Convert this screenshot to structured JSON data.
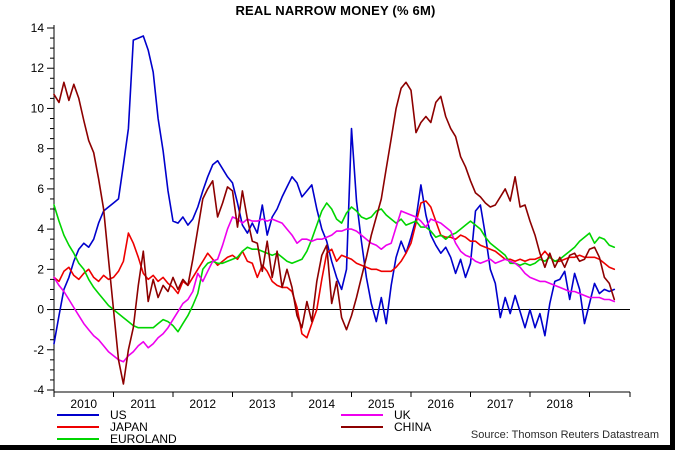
{
  "title": "REAL NARROW MONEY (% 6M)",
  "source": "Source: Thomson Reuters Datastream",
  "chart_data": {
    "type": "line",
    "title": "REAL NARROW MONEY (% 6M)",
    "x_unit": "monthly",
    "x_start": "2010-01",
    "x_end": "2019-06",
    "x_year_labels": [
      "2010",
      "2011",
      "2012",
      "2013",
      "2014",
      "2015",
      "2016",
      "2017",
      "2018"
    ],
    "ylim": [
      -4,
      14
    ],
    "y_major_ticks": [
      14,
      12,
      10,
      8,
      6,
      4,
      2,
      0,
      -2,
      -4
    ],
    "y_minor_step": 0.5,
    "zero_line": true,
    "grid": false,
    "legend_position": "bottom",
    "legend_columns": [
      [
        "US",
        "JAPAN",
        "EUROLAND"
      ],
      [
        "UK",
        "CHINA"
      ]
    ],
    "series": [
      {
        "name": "US",
        "color": "#0000cc",
        "values": [
          -1.7,
          -0.3,
          1.0,
          1.6,
          2.4,
          3.0,
          3.3,
          3.1,
          3.5,
          4.3,
          4.9,
          5.1,
          5.3,
          5.5,
          7.2,
          9.0,
          13.4,
          13.5,
          13.6,
          12.9,
          11.8,
          9.5,
          7.9,
          5.9,
          4.4,
          4.3,
          4.6,
          4.2,
          4.5,
          5.1,
          5.9,
          6.6,
          7.2,
          7.4,
          7.0,
          6.6,
          6.3,
          5.3,
          4.2,
          3.8,
          4.3,
          3.8,
          5.2,
          3.7,
          4.6,
          5.0,
          5.6,
          6.1,
          6.6,
          6.3,
          5.6,
          5.9,
          6.2,
          5.0,
          4.0,
          3.4,
          2.4,
          1.6,
          1.0,
          2.0,
          9.0,
          5.4,
          3.4,
          1.6,
          0.3,
          -0.6,
          0.6,
          -0.7,
          1.2,
          2.6,
          3.4,
          2.8,
          3.6,
          4.5,
          6.2,
          4.7,
          3.7,
          3.2,
          2.8,
          3.1,
          2.6,
          1.8,
          2.5,
          1.6,
          2.3,
          4.9,
          5.2,
          3.7,
          2.0,
          1.3,
          -0.4,
          0.6,
          -0.2,
          0.7,
          -0.1,
          -0.9,
          0.0,
          -0.9,
          -0.2,
          -1.3,
          0.3,
          1.4,
          1.5,
          1.9,
          0.5,
          1.8,
          1.0,
          -0.7,
          0.3,
          1.3,
          0.8,
          1.0,
          0.9,
          1.0
        ]
      },
      {
        "name": "JAPAN",
        "color": "#ee0000",
        "values": [
          1.6,
          1.4,
          1.9,
          2.1,
          1.7,
          1.5,
          1.8,
          2.0,
          1.6,
          1.4,
          1.7,
          1.5,
          1.6,
          1.9,
          2.4,
          3.8,
          3.3,
          2.6,
          1.8,
          1.5,
          1.7,
          1.4,
          1.6,
          1.3,
          1.1,
          0.8,
          1.4,
          1.2,
          1.6,
          2.0,
          2.4,
          2.8,
          2.5,
          2.2,
          2.4,
          2.6,
          2.7,
          2.5,
          2.9,
          2.4,
          2.3,
          1.6,
          2.2,
          1.9,
          1.4,
          1.2,
          1.1,
          1.1,
          0.9,
          0.1,
          -1.2,
          -1.4,
          -0.7,
          0.0,
          1.5,
          2.8,
          3.0,
          2.4,
          2.7,
          2.6,
          2.5,
          2.3,
          2.2,
          2.1,
          2.0,
          2.0,
          1.9,
          1.9,
          1.9,
          2.1,
          2.4,
          2.8,
          3.3,
          4.3,
          5.3,
          5.4,
          5.1,
          4.4,
          3.7,
          3.6,
          3.6,
          3.5,
          3.7,
          3.6,
          3.4,
          3.4,
          3.2,
          3.1,
          3.0,
          2.9,
          2.7,
          2.5,
          2.5,
          2.4,
          2.5,
          2.4,
          2.5,
          2.5,
          2.6,
          2.9,
          2.6,
          2.4,
          2.4,
          2.5,
          2.6,
          2.6,
          2.7,
          2.6,
          2.6,
          2.6,
          2.5,
          2.3,
          2.1,
          2.0
        ]
      },
      {
        "name": "EUROLAND",
        "color": "#00d500",
        "values": [
          5.2,
          4.4,
          3.7,
          3.2,
          2.8,
          2.3,
          2.0,
          1.5,
          1.1,
          0.8,
          0.5,
          0.2,
          0.0,
          -0.2,
          -0.4,
          -0.6,
          -0.8,
          -0.9,
          -0.9,
          -0.9,
          -0.9,
          -0.7,
          -0.5,
          -0.6,
          -0.8,
          -1.1,
          -0.7,
          -0.3,
          0.2,
          0.8,
          2.0,
          2.3,
          2.4,
          2.3,
          2.3,
          2.4,
          2.5,
          2.6,
          2.9,
          3.1,
          3.0,
          3.0,
          2.9,
          2.8,
          2.7,
          2.8,
          2.6,
          2.4,
          2.3,
          2.4,
          2.5,
          2.9,
          3.5,
          4.2,
          4.9,
          5.3,
          5.0,
          4.5,
          4.3,
          4.8,
          5.1,
          4.9,
          4.6,
          4.5,
          4.6,
          4.9,
          5.0,
          4.7,
          4.5,
          4.3,
          4.5,
          4.2,
          4.3,
          4.4,
          4.1,
          4.1,
          3.9,
          3.6,
          3.7,
          3.5,
          3.7,
          3.8,
          4.0,
          4.2,
          4.4,
          4.2,
          4.0,
          3.6,
          3.3,
          3.1,
          2.9,
          2.7,
          2.3,
          2.3,
          2.2,
          2.3,
          2.2,
          2.3,
          2.5,
          2.4,
          2.6,
          2.4,
          2.5,
          2.7,
          2.9,
          3.1,
          3.4,
          3.6,
          3.8,
          3.3,
          3.6,
          3.5,
          3.2,
          3.1
        ]
      },
      {
        "name": "UK",
        "color": "#ee00ee",
        "values": [
          1.6,
          1.2,
          0.9,
          0.5,
          0.1,
          -0.3,
          -0.7,
          -1.0,
          -1.3,
          -1.5,
          -1.8,
          -2.1,
          -2.3,
          -2.5,
          -2.6,
          -2.3,
          -2.1,
          -1.8,
          -1.6,
          -1.9,
          -1.7,
          -1.4,
          -1.2,
          -0.9,
          -0.5,
          -0.1,
          0.3,
          0.5,
          0.9,
          1.8,
          1.4,
          1.9,
          2.4,
          2.5,
          3.2,
          4.0,
          4.6,
          4.5,
          4.3,
          4.5,
          4.4,
          4.4,
          4.5,
          4.4,
          4.5,
          4.4,
          4.3,
          4.0,
          3.7,
          3.3,
          3.5,
          3.5,
          3.4,
          3.5,
          3.5,
          3.6,
          3.7,
          3.9,
          3.9,
          4.0,
          4.0,
          3.9,
          3.7,
          3.5,
          3.3,
          3.2,
          3.0,
          3.2,
          3.3,
          4.1,
          4.9,
          4.8,
          4.7,
          4.6,
          4.4,
          4.1,
          4.5,
          4.4,
          4.3,
          4.1,
          3.9,
          3.3,
          2.9,
          2.7,
          2.6,
          2.4,
          2.3,
          2.4,
          2.5,
          2.3,
          2.4,
          2.5,
          2.4,
          2.3,
          2.1,
          1.8,
          1.6,
          1.5,
          1.4,
          1.4,
          1.3,
          1.2,
          1.1,
          1.0,
          0.9,
          0.9,
          0.8,
          0.7,
          0.6,
          0.6,
          0.6,
          0.5,
          0.5,
          0.4
        ]
      },
      {
        "name": "CHINA",
        "color": "#8d0000",
        "values": [
          10.7,
          10.3,
          11.3,
          10.4,
          11.2,
          10.5,
          9.4,
          8.4,
          7.8,
          6.5,
          5.0,
          2.5,
          0.0,
          -2.5,
          -3.7,
          -2.0,
          -0.9,
          1.2,
          2.9,
          0.4,
          1.5,
          0.6,
          1.2,
          0.9,
          1.6,
          1.0,
          1.5,
          1.2,
          2.5,
          4.0,
          5.5,
          6.0,
          6.4,
          4.6,
          5.3,
          6.1,
          5.9,
          4.1,
          5.9,
          4.5,
          3.4,
          3.3,
          1.9,
          3.4,
          1.6,
          2.9,
          1.1,
          2.0,
          1.1,
          -0.3,
          -0.9,
          0.4,
          -0.6,
          1.4,
          2.7,
          3.2,
          0.3,
          1.4,
          -0.4,
          -1.0,
          -0.3,
          0.6,
          1.6,
          2.6,
          3.7,
          4.6,
          5.5,
          7.0,
          8.5,
          10.0,
          11.0,
          11.3,
          10.9,
          8.8,
          9.3,
          9.6,
          9.3,
          10.3,
          10.6,
          9.6,
          9.0,
          8.6,
          7.6,
          7.1,
          6.4,
          5.8,
          5.6,
          5.3,
          5.1,
          5.2,
          5.6,
          6.0,
          5.4,
          6.6,
          5.1,
          5.2,
          4.4,
          3.7,
          2.8,
          2.1,
          2.8,
          2.1,
          2.6,
          2.1,
          2.7,
          2.8,
          2.4,
          2.5,
          3.0,
          3.1,
          2.6,
          1.6,
          1.3,
          0.5
        ]
      }
    ]
  }
}
